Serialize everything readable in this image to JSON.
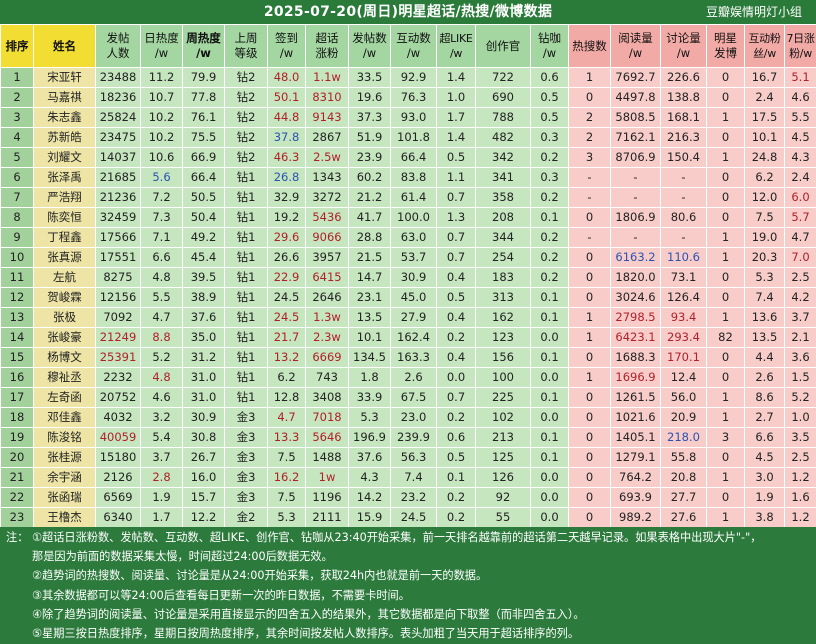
{
  "header": {
    "title": "2025-07-20(周日)明星超话/热搜/微博数据",
    "brand": "豆瓣娱情明灯小组"
  },
  "columns": [
    {
      "label": "排序",
      "line2": ""
    },
    {
      "label": "姓名",
      "line2": ""
    },
    {
      "label": "发帖",
      "line2": "人数"
    },
    {
      "label": "日热度",
      "line2": "/w"
    },
    {
      "label": "周热度",
      "line2": "/w"
    },
    {
      "label": "上周",
      "line2": "等级"
    },
    {
      "label": "签到",
      "line2": "/w"
    },
    {
      "label": "超话",
      "line2": "涨粉"
    },
    {
      "label": "发帖数",
      "line2": "/w"
    },
    {
      "label": "互动数",
      "line2": "/w"
    },
    {
      "label": "超LIKE",
      "line2": "/w"
    },
    {
      "label": "创作官",
      "line2": ""
    },
    {
      "label": "钻咖",
      "line2": "/w"
    },
    {
      "label": "热搜数",
      "line2": ""
    },
    {
      "label": "阅读量",
      "line2": "/w"
    },
    {
      "label": "讨论量",
      "line2": "/w"
    },
    {
      "label": "明星",
      "line2": "发博"
    },
    {
      "label": "互动粉",
      "line2": "丝/w"
    },
    {
      "label": "7日涨",
      "line2": "粉/w"
    }
  ],
  "colors": {
    "red": "#b0202b",
    "blue": "#2a52b2"
  },
  "rows": [
    {
      "rank": "1",
      "name": "宋亚轩",
      "posters": "23488",
      "day": "11.2",
      "week": "79.9",
      "level": "钻2",
      "sign": "48.0",
      "fans": "1.1w",
      "posts": "33.5",
      "inter": "92.9",
      "like": "1.4",
      "creator": "722",
      "zk": "0.6",
      "hot": "1",
      "read": "7692.7",
      "disc": "226.6",
      "star": "0",
      "ifans": "16.7",
      "gain": "5.1",
      "hl": {
        "sign": "red",
        "fans": "red",
        "gain": "red"
      }
    },
    {
      "rank": "2",
      "name": "马嘉祺",
      "posters": "18236",
      "day": "10.7",
      "week": "77.8",
      "level": "钻2",
      "sign": "50.1",
      "fans": "8310",
      "posts": "19.6",
      "inter": "76.3",
      "like": "1.0",
      "creator": "690",
      "zk": "0.5",
      "hot": "0",
      "read": "4497.8",
      "disc": "138.8",
      "star": "0",
      "ifans": "2.4",
      "gain": "4.6",
      "hl": {
        "sign": "red",
        "fans": "red"
      }
    },
    {
      "rank": "3",
      "name": "朱志鑫",
      "posters": "25824",
      "day": "10.2",
      "week": "76.1",
      "level": "钻2",
      "sign": "44.8",
      "fans": "9143",
      "posts": "37.3",
      "inter": "93.0",
      "like": "1.7",
      "creator": "788",
      "zk": "0.5",
      "hot": "2",
      "read": "5808.5",
      "disc": "168.1",
      "star": "1",
      "ifans": "17.5",
      "gain": "5.5",
      "hl": {
        "sign": "red",
        "fans": "red"
      }
    },
    {
      "rank": "4",
      "name": "苏新皓",
      "posters": "23475",
      "day": "10.2",
      "week": "75.5",
      "level": "钻2",
      "sign": "37.8",
      "fans": "2867",
      "posts": "51.9",
      "inter": "101.8",
      "like": "1.4",
      "creator": "482",
      "zk": "0.3",
      "hot": "2",
      "read": "7162.1",
      "disc": "216.3",
      "star": "0",
      "ifans": "10.1",
      "gain": "4.5",
      "hl": {
        "sign": "blue"
      }
    },
    {
      "rank": "5",
      "name": "刘耀文",
      "posters": "14037",
      "day": "10.6",
      "week": "66.9",
      "level": "钻2",
      "sign": "46.3",
      "fans": "2.5w",
      "posts": "23.9",
      "inter": "66.4",
      "like": "0.5",
      "creator": "342",
      "zk": "0.2",
      "hot": "3",
      "read": "8706.9",
      "disc": "150.4",
      "star": "1",
      "ifans": "24.8",
      "gain": "4.3",
      "hl": {
        "sign": "red",
        "fans": "red"
      }
    },
    {
      "rank": "6",
      "name": "张泽禹",
      "posters": "21685",
      "day": "5.6",
      "week": "66.4",
      "level": "钻1",
      "sign": "26.8",
      "fans": "1343",
      "posts": "60.2",
      "inter": "83.8",
      "like": "1.1",
      "creator": "341",
      "zk": "0.3",
      "hot": "-",
      "read": "-",
      "disc": "-",
      "star": "0",
      "ifans": "6.2",
      "gain": "2.4",
      "hl": {
        "day": "blue",
        "sign": "blue"
      }
    },
    {
      "rank": "7",
      "name": "严浩翔",
      "posters": "21236",
      "day": "7.2",
      "week": "50.5",
      "level": "钻1",
      "sign": "32.9",
      "fans": "3272",
      "posts": "21.2",
      "inter": "61.4",
      "like": "0.7",
      "creator": "358",
      "zk": "0.2",
      "hot": "-",
      "read": "-",
      "disc": "-",
      "star": "0",
      "ifans": "12.0",
      "gain": "6.0",
      "hl": {
        "gain": "red"
      }
    },
    {
      "rank": "8",
      "name": "陈奕恒",
      "posters": "32459",
      "day": "7.3",
      "week": "50.4",
      "level": "钻1",
      "sign": "19.2",
      "fans": "5436",
      "posts": "41.7",
      "inter": "100.0",
      "like": "1.3",
      "creator": "208",
      "zk": "0.1",
      "hot": "0",
      "read": "1806.9",
      "disc": "80.6",
      "star": "0",
      "ifans": "7.5",
      "gain": "5.7",
      "hl": {
        "fans": "red",
        "gain": "red"
      }
    },
    {
      "rank": "9",
      "name": "丁程鑫",
      "posters": "17566",
      "day": "7.1",
      "week": "49.2",
      "level": "钻1",
      "sign": "29.6",
      "fans": "9066",
      "posts": "28.8",
      "inter": "63.0",
      "like": "0.7",
      "creator": "344",
      "zk": "0.2",
      "hot": "-",
      "read": "-",
      "disc": "-",
      "star": "1",
      "ifans": "19.0",
      "gain": "4.7",
      "hl": {
        "sign": "red",
        "fans": "red"
      }
    },
    {
      "rank": "10",
      "name": "张真源",
      "posters": "17551",
      "day": "6.6",
      "week": "45.4",
      "level": "钻1",
      "sign": "26.6",
      "fans": "3957",
      "posts": "21.5",
      "inter": "53.7",
      "like": "0.7",
      "creator": "254",
      "zk": "0.2",
      "hot": "0",
      "read": "6163.2",
      "disc": "110.6",
      "star": "1",
      "ifans": "20.3",
      "gain": "7.0",
      "hl": {
        "read": "blue",
        "disc": "blue",
        "gain": "red"
      }
    },
    {
      "rank": "11",
      "name": "左航",
      "posters": "8275",
      "day": "4.8",
      "week": "39.5",
      "level": "钻1",
      "sign": "22.9",
      "fans": "6415",
      "posts": "14.7",
      "inter": "30.9",
      "like": "0.4",
      "creator": "183",
      "zk": "0.2",
      "hot": "0",
      "read": "1820.0",
      "disc": "73.1",
      "star": "0",
      "ifans": "5.3",
      "gain": "2.5",
      "hl": {
        "sign": "red",
        "fans": "red"
      }
    },
    {
      "rank": "12",
      "name": "贺峻霖",
      "posters": "12156",
      "day": "5.5",
      "week": "38.9",
      "level": "钻1",
      "sign": "24.5",
      "fans": "2646",
      "posts": "23.1",
      "inter": "45.0",
      "like": "0.5",
      "creator": "313",
      "zk": "0.1",
      "hot": "0",
      "read": "3024.6",
      "disc": "126.4",
      "star": "0",
      "ifans": "7.4",
      "gain": "4.2",
      "hl": {}
    },
    {
      "rank": "13",
      "name": "张极",
      "posters": "7092",
      "day": "4.7",
      "week": "37.6",
      "level": "钻1",
      "sign": "24.5",
      "fans": "1.3w",
      "posts": "13.5",
      "inter": "27.9",
      "like": "0.4",
      "creator": "162",
      "zk": "0.1",
      "hot": "1",
      "read": "2798.5",
      "disc": "93.4",
      "star": "1",
      "ifans": "13.6",
      "gain": "3.7",
      "hl": {
        "sign": "red",
        "fans": "red",
        "read": "red",
        "disc": "red"
      }
    },
    {
      "rank": "14",
      "name": "张峻豪",
      "posters": "21249",
      "day": "8.8",
      "week": "35.0",
      "level": "钻1",
      "sign": "21.7",
      "fans": "2.3w",
      "posts": "10.1",
      "inter": "162.4",
      "like": "0.2",
      "creator": "123",
      "zk": "0.0",
      "hot": "1",
      "read": "6423.1",
      "disc": "293.4",
      "star": "82",
      "ifans": "13.5",
      "gain": "2.1",
      "hl": {
        "posters": "red",
        "day": "red",
        "sign": "red",
        "fans": "red",
        "read": "red",
        "disc": "red"
      }
    },
    {
      "rank": "15",
      "name": "杨博文",
      "posters": "25391",
      "day": "5.2",
      "week": "31.2",
      "level": "钻1",
      "sign": "13.2",
      "fans": "6669",
      "posts": "134.5",
      "inter": "163.3",
      "like": "0.4",
      "creator": "156",
      "zk": "0.1",
      "hot": "0",
      "read": "1688.3",
      "disc": "170.1",
      "star": "0",
      "ifans": "4.4",
      "gain": "3.6",
      "hl": {
        "posters": "red",
        "sign": "red",
        "fans": "red",
        "disc": "red"
      }
    },
    {
      "rank": "16",
      "name": "穆祉丞",
      "posters": "2232",
      "day": "4.8",
      "week": "31.0",
      "level": "钻1",
      "sign": "6.2",
      "fans": "743",
      "posts": "1.8",
      "inter": "2.6",
      "like": "0.0",
      "creator": "100",
      "zk": "0.0",
      "hot": "1",
      "read": "1696.9",
      "disc": "12.4",
      "star": "0",
      "ifans": "2.6",
      "gain": "1.5",
      "hl": {
        "day": "red",
        "read": "red"
      }
    },
    {
      "rank": "17",
      "name": "左奇函",
      "posters": "20752",
      "day": "4.6",
      "week": "31.0",
      "level": "钻1",
      "sign": "12.8",
      "fans": "3408",
      "posts": "33.9",
      "inter": "67.5",
      "like": "0.7",
      "creator": "225",
      "zk": "0.1",
      "hot": "0",
      "read": "1261.5",
      "disc": "56.0",
      "star": "1",
      "ifans": "8.6",
      "gain": "5.2",
      "hl": {}
    },
    {
      "rank": "18",
      "name": "邓佳鑫",
      "posters": "4032",
      "day": "3.2",
      "week": "30.9",
      "level": "金3",
      "sign": "4.7",
      "fans": "7018",
      "posts": "5.3",
      "inter": "23.0",
      "like": "0.2",
      "creator": "102",
      "zk": "0.0",
      "hot": "0",
      "read": "1021.6",
      "disc": "20.9",
      "star": "1",
      "ifans": "2.7",
      "gain": "1.0",
      "hl": {
        "sign": "red",
        "fans": "red"
      }
    },
    {
      "rank": "19",
      "name": "陈浚铭",
      "posters": "40059",
      "day": "5.4",
      "week": "30.8",
      "level": "金3",
      "sign": "13.3",
      "fans": "5646",
      "posts": "196.9",
      "inter": "239.9",
      "like": "0.6",
      "creator": "213",
      "zk": "0.1",
      "hot": "0",
      "read": "1405.1",
      "disc": "218.0",
      "star": "3",
      "ifans": "6.6",
      "gain": "3.5",
      "hl": {
        "posters": "red",
        "sign": "red",
        "fans": "red",
        "disc": "blue"
      }
    },
    {
      "rank": "20",
      "name": "张桂源",
      "posters": "15180",
      "day": "3.7",
      "week": "26.7",
      "level": "金3",
      "sign": "7.5",
      "fans": "1488",
      "posts": "37.6",
      "inter": "56.3",
      "like": "0.5",
      "creator": "125",
      "zk": "0.1",
      "hot": "0",
      "read": "1279.1",
      "disc": "55.8",
      "star": "0",
      "ifans": "4.5",
      "gain": "2.5",
      "hl": {}
    },
    {
      "rank": "21",
      "name": "余宇涵",
      "posters": "2126",
      "day": "2.8",
      "week": "16.0",
      "level": "金3",
      "sign": "16.2",
      "fans": "1w",
      "posts": "4.3",
      "inter": "7.4",
      "like": "0.1",
      "creator": "126",
      "zk": "0.0",
      "hot": "0",
      "read": "764.2",
      "disc": "20.8",
      "star": "1",
      "ifans": "3.0",
      "gain": "1.2",
      "hl": {
        "day": "red",
        "sign": "red",
        "fans": "red"
      }
    },
    {
      "rank": "22",
      "name": "张函瑞",
      "posters": "6569",
      "day": "1.9",
      "week": "15.7",
      "level": "金3",
      "sign": "7.5",
      "fans": "1196",
      "posts": "14.2",
      "inter": "23.2",
      "like": "0.2",
      "creator": "92",
      "zk": "0.0",
      "hot": "0",
      "read": "693.9",
      "disc": "27.7",
      "star": "0",
      "ifans": "1.9",
      "gain": "1.6",
      "hl": {}
    },
    {
      "rank": "23",
      "name": "王橹杰",
      "posters": "6340",
      "day": "1.7",
      "week": "12.2",
      "level": "金2",
      "sign": "5.3",
      "fans": "2111",
      "posts": "15.9",
      "inter": "24.5",
      "like": "0.2",
      "creator": "55",
      "zk": "0.0",
      "hot": "0",
      "read": "989.2",
      "disc": "27.6",
      "star": "1",
      "ifans": "3.8",
      "gain": "1.2",
      "hl": {}
    }
  ],
  "notes": {
    "prefix": "注：",
    "items": [
      {
        "bullet": "①",
        "text": "超话日涨粉数、发帖数、互动数、超LIKE、创作官、钻咖从23:40开始采集，前一天排名越靠前的超话第二天越早记录。如果表格中出现大片\"-\"，"
      },
      {
        "bullet": "",
        "text": "那是因为前面的数据采集太慢，时间超过24:00后数据无效。"
      },
      {
        "bullet": "②",
        "text": "趋势词的热搜数、阅读量、讨论量是从24:00开始采集，获取24h内也就是前一天的数据。"
      },
      {
        "bullet": "③",
        "text": "其余数据都可以等24:00后查看每日更新一次的昨日数据，不需要卡时间。"
      },
      {
        "bullet": "④",
        "text": "除了趋势词的阅读量、讨论量是采用直接显示的四舍五入的结果外，其它数据都是向下取整（而非四舍五入）。"
      },
      {
        "bullet": "⑤",
        "text": "星期三按日热度排序，星期日按周热度排序，其余时间按发帖人数排序。表头加粗了当天用于超话排序的列。"
      }
    ]
  }
}
